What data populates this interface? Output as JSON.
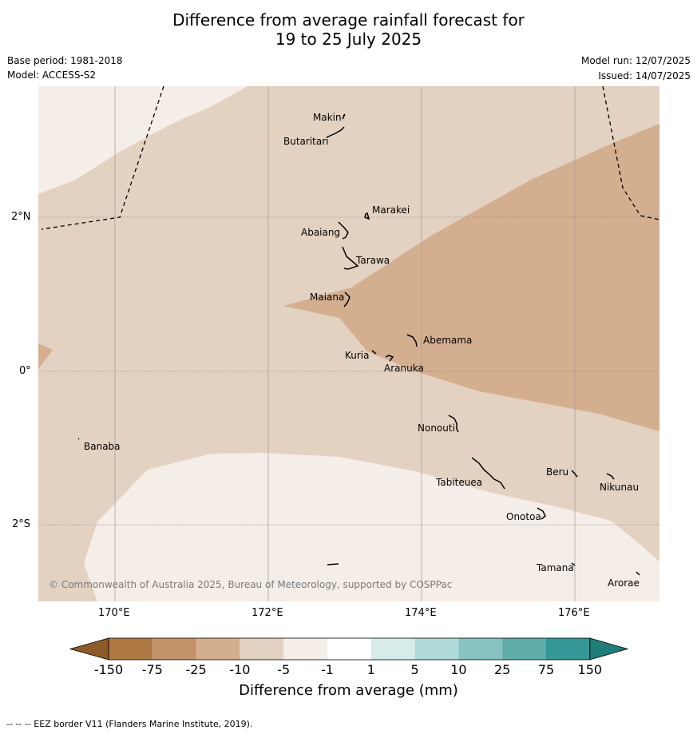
{
  "title_line1": "Difference from average rainfall forecast for",
  "title_line2": "19 to 25 July 2025",
  "base_period": "Base period: 1981-2018",
  "model": "Model: ACCESS-S2",
  "model_run": "Model run: 12/07/2025",
  "issued": "Issued: 14/07/2025",
  "copyright": "© Commonwealth of Australia 2025, Bureau of Meteorology, supported by COSPPac",
  "lat_labels": [
    "2°N",
    "0°",
    "2°S"
  ],
  "lon_labels": [
    "170°E",
    "172°E",
    "174°E",
    "176°E"
  ],
  "places": [
    "Makin",
    "Butaritari",
    "Marakei",
    "Abaiang",
    "Tarawa",
    "Maiana",
    "Abemama",
    "Kuria",
    "Aranuka",
    "Nonouti",
    "Banaba",
    "Tabiteuea",
    "Beru",
    "Nikunau",
    "Onotoa",
    "Tamana",
    "Arorae"
  ],
  "colorbar": {
    "ticks": [
      "-150",
      "-75",
      "-25",
      "-10",
      "-5",
      "-1",
      "1",
      "5",
      "10",
      "25",
      "75",
      "150"
    ],
    "colors": [
      "#8e5a2a",
      "#ae7842",
      "#c29369",
      "#d4af8f",
      "#e3d2c1",
      "#f5ede7",
      "#ffffff",
      "#d5eceb",
      "#b0dad9",
      "#86c3c2",
      "#5fadab",
      "#339895",
      "#1f7d7a"
    ],
    "label": "Difference from average (mm)"
  },
  "footnote": "--  --  -- EEZ border V11 (Flanders Marine Institute, 2019)."
}
